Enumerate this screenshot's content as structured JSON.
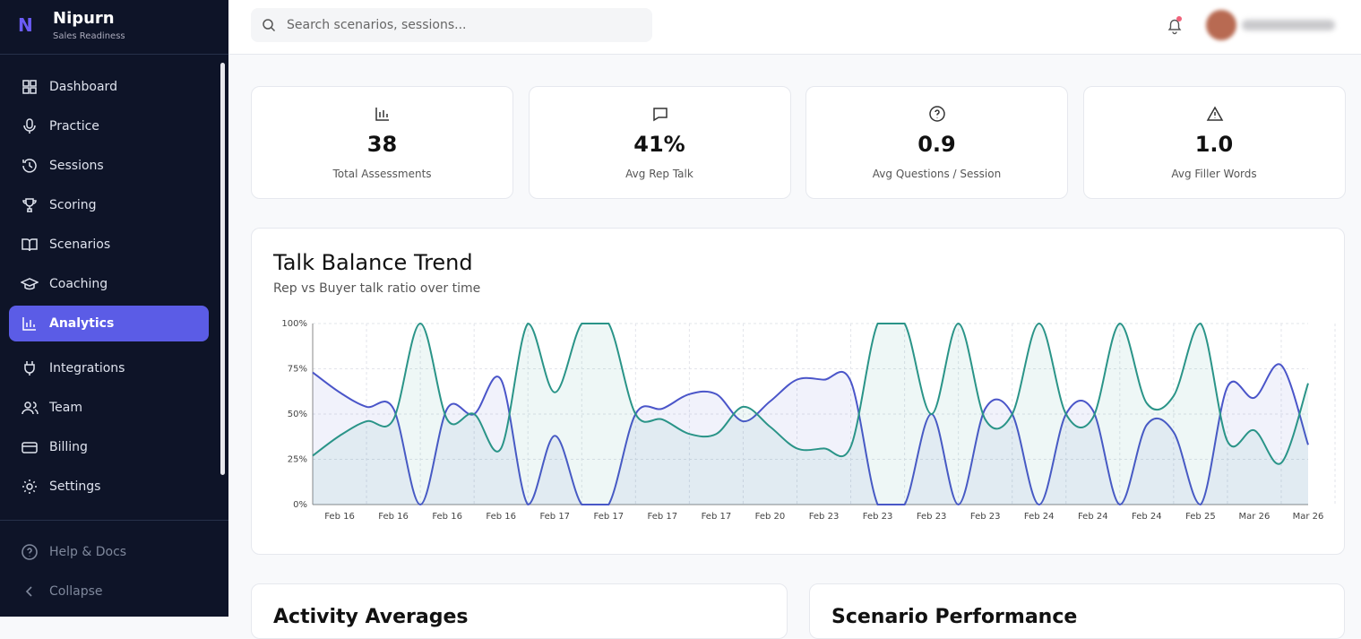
{
  "brand": {
    "name": "Nipurn",
    "tagline": "Sales Readiness"
  },
  "nav": [
    "Dashboard",
    "Practice",
    "Sessions",
    "Scoring",
    "Scenarios",
    "Coaching",
    "Analytics",
    "Integrations",
    "Team",
    "Billing",
    "Settings"
  ],
  "footer_nav": [
    "Help & Docs",
    "Collapse"
  ],
  "search": {
    "placeholder": "Search scenarios, sessions..."
  },
  "stats": [
    {
      "value": "38",
      "label": "Total Assessments"
    },
    {
      "value": "41%",
      "label": "Avg Rep Talk"
    },
    {
      "value": "0.9",
      "label": "Avg Questions / Session"
    },
    {
      "value": "1.0",
      "label": "Avg Filler Words"
    }
  ],
  "lower_cards": [
    "Activity Averages",
    "Scenario Performance"
  ],
  "chart_data": {
    "type": "line",
    "title": "Talk Balance Trend",
    "subtitle": "Rep vs Buyer talk ratio over time",
    "categories": [
      null,
      "Feb 16",
      null,
      "Feb 16",
      null,
      "Feb 16",
      null,
      "Feb 16",
      null,
      "Feb 17",
      null,
      "Feb 17",
      null,
      "Feb 17",
      null,
      "Feb 17",
      null,
      "Feb 20",
      null,
      "Feb 23",
      null,
      "Feb 23",
      null,
      "Feb 23",
      null,
      "Feb 23",
      null,
      "Feb 24",
      null,
      "Feb 24",
      null,
      "Feb 24",
      null,
      "Feb 25",
      null,
      "Mar 26",
      null,
      "Mar 26"
    ],
    "series": [
      {
        "color": "#4a55c9",
        "values": [
          73,
          62,
          54,
          53,
          0,
          53,
          50,
          69,
          0,
          38,
          0,
          0,
          50,
          53,
          61,
          61,
          46,
          57,
          69,
          69,
          68,
          0,
          0,
          50,
          0,
          53,
          50,
          0,
          50,
          52,
          0,
          44,
          40,
          0,
          65,
          59,
          77,
          33
        ]
      },
      {
        "color": "#2a9488",
        "values": [
          27,
          38,
          46,
          47,
          100,
          47,
          50,
          31,
          100,
          62,
          100,
          100,
          50,
          47,
          39,
          39,
          54,
          43,
          31,
          31,
          32,
          100,
          100,
          50,
          100,
          47,
          50,
          100,
          50,
          48,
          100,
          56,
          60,
          100,
          35,
          41,
          23,
          67
        ]
      }
    ],
    "ylim": [
      0,
      100
    ],
    "yticks": [
      {
        "value": 0,
        "label": "0%"
      },
      {
        "value": 25,
        "label": "25%"
      },
      {
        "value": 50,
        "label": "50%"
      },
      {
        "value": 75,
        "label": "75%"
      },
      {
        "value": 100,
        "label": "100%"
      }
    ],
    "grid": true
  }
}
